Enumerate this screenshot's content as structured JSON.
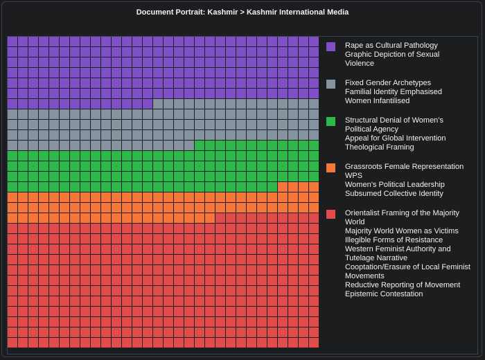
{
  "title": "Document Portrait: Kashmir > Kashmir International Media",
  "chart_data": {
    "type": "waffle",
    "grid": {
      "columns": 30,
      "rows": 30
    },
    "series": [
      {
        "name": "Rape as Cultural Pathology",
        "lines": [
          "Rape as Cultural Pathology",
          "Graphic Depiction of Sexual",
          "Violence"
        ],
        "color": "#7e4fc6",
        "count": 194
      },
      {
        "name": "Fixed Gender Archetypes",
        "lines": [
          "Fixed Gender Archetypes",
          "Familial Identity Emphasised",
          "Women Infantilised"
        ],
        "color": "#8592a0",
        "count": 124
      },
      {
        "name": "Structural Denial of Women's Political Agency",
        "lines": [
          "Structural Denial of Women’s",
          "Political Agency",
          "Appeal for Global Intervention",
          "Theological Framing"
        ],
        "color": "#2eb84a",
        "count": 128
      },
      {
        "name": "Grassroots Female Representation",
        "lines": [
          "Grassroots Female Representation",
          "WPS",
          "Women’s Political Leadership",
          "Subsumed Collective Identity"
        ],
        "color": "#f5773a",
        "count": 84
      },
      {
        "name": "Orientalist Framing of the Majority World",
        "lines": [
          "Orientalist Framing of the Majority",
          "World",
          "Majority World Women as Victims",
          "Illegible Forms of Resistance",
          "Western Feminist Authority and",
          "Tutelage Narrative",
          "Cooptation/Erasure of Local Feminist",
          "Movements",
          "Reductive Reporting of Movement",
          "Epistemic Contestation"
        ],
        "color": "#e04b4b",
        "count": 370
      }
    ]
  }
}
